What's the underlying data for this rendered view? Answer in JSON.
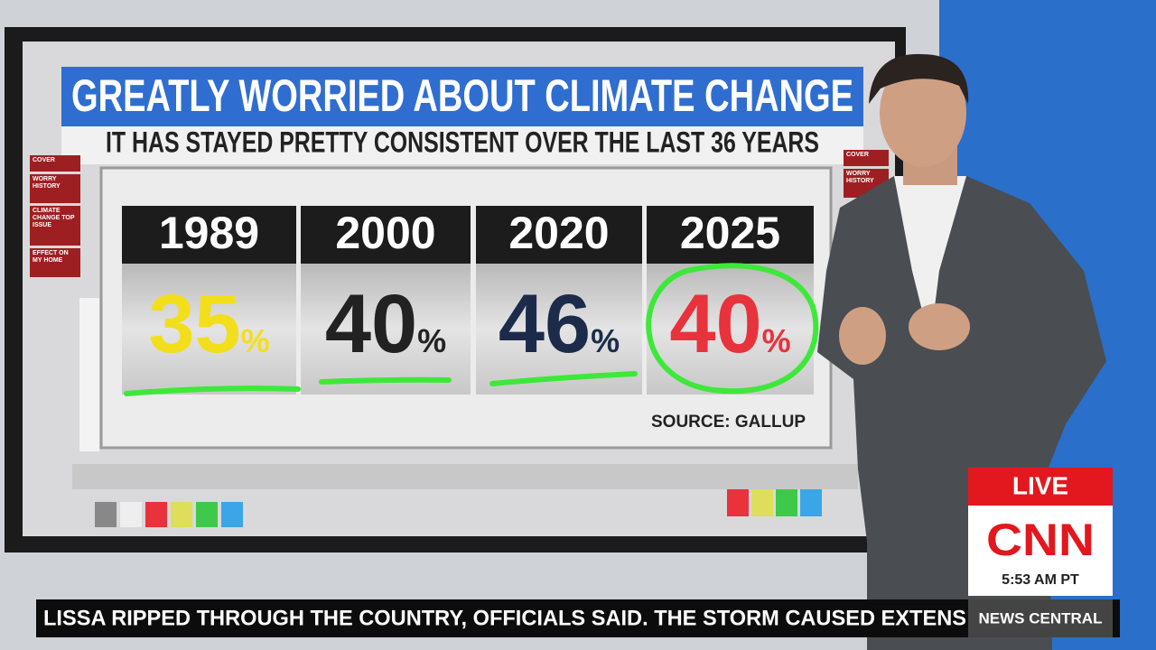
{
  "graphic": {
    "title": "GREATLY WORRIED ABOUT CLIMATE CHANGE",
    "subtitle": "IT HAS STAYED PRETTY CONSISTENT OVER THE LAST 36 YEARS",
    "panels": [
      {
        "year": "1989",
        "value": 35,
        "unit": "%",
        "color": "#f3de1c"
      },
      {
        "year": "2000",
        "value": 40,
        "unit": "%",
        "color": "#222222"
      },
      {
        "year": "2020",
        "value": 46,
        "unit": "%",
        "color": "#1d2b4b"
      },
      {
        "year": "2025",
        "value": 40,
        "unit": "%",
        "color": "#e8323c"
      }
    ],
    "source": "SOURCE: GALLUP",
    "left_menu": [
      "COVER",
      "WORRY HISTORY",
      "CLIMATE CHANGE TOP ISSUE",
      "EFFECT ON MY HOME"
    ],
    "right_menu": [
      "COVER",
      "WORRY HISTORY"
    ]
  },
  "broadcast": {
    "live": "LIVE",
    "network": "CNN",
    "time": "5:53 AM PT",
    "ticker": "LISSA RIPPED THROUGH THE COUNTRY, OFFICIALS SAID. THE STORM CAUSED EXTENS",
    "show": "NEWS CENTRAL"
  }
}
